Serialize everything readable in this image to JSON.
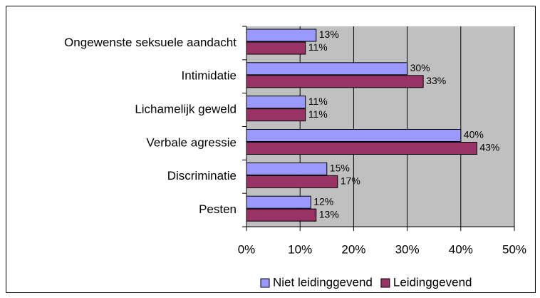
{
  "chart_data": {
    "type": "bar",
    "orientation": "horizontal",
    "categories": [
      "Ongewenste seksuele aandacht",
      "Intimidatie",
      "Lichamelijk geweld",
      "Verbale agressie",
      "Discriminatie",
      "Pesten"
    ],
    "series": [
      {
        "name": "Niet leidinggevend",
        "color": "#9999ff",
        "values": [
          13,
          30,
          11,
          40,
          15,
          12
        ],
        "value_labels": [
          "13%",
          "30%",
          "11%",
          "40%",
          "15%",
          "12%"
        ]
      },
      {
        "name": "Leidinggevend",
        "color": "#993366",
        "values": [
          11,
          33,
          11,
          43,
          17,
          13
        ],
        "value_labels": [
          "11%",
          "33%",
          "11%",
          "43%",
          "17%",
          "13%"
        ]
      }
    ],
    "xlim": [
      0,
      50
    ],
    "xticks": [
      {
        "value": 0,
        "label": "0%"
      },
      {
        "value": 10,
        "label": "10%"
      },
      {
        "value": 20,
        "label": "20%"
      },
      {
        "value": 30,
        "label": "30%"
      },
      {
        "value": 40,
        "label": "40%"
      },
      {
        "value": 50,
        "label": "50%"
      }
    ],
    "grid": true,
    "legend": "bottom"
  }
}
